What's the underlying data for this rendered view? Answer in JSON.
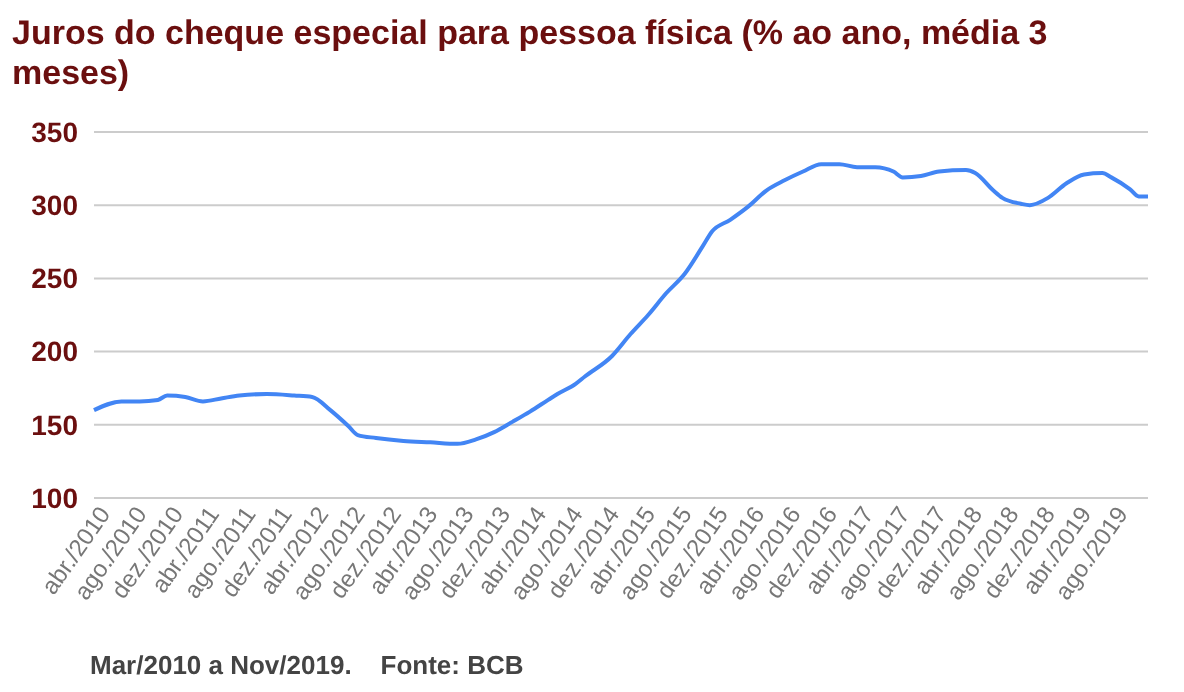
{
  "chart_data": {
    "type": "line",
    "title": "Juros do cheque especial para pessoa física (% ao ano, média 3 meses)",
    "x": [
      "2010-03",
      "2010-06",
      "2010-08",
      "2010-10",
      "2010-11",
      "2011-01",
      "2011-03",
      "2011-05",
      "2011-07",
      "2011-10",
      "2012-01",
      "2012-03",
      "2012-05",
      "2012-07",
      "2012-08",
      "2012-10",
      "2013-01",
      "2013-04",
      "2013-07",
      "2013-09",
      "2013-11",
      "2014-01",
      "2014-03",
      "2014-05",
      "2014-06",
      "2014-08",
      "2014-09",
      "2014-12",
      "2015-02",
      "2015-04",
      "2015-06",
      "2015-08",
      "2015-10",
      "2015-11",
      "2016-01",
      "2016-03",
      "2016-05",
      "2016-07",
      "2016-09",
      "2016-11",
      "2017-01",
      "2017-03",
      "2017-05",
      "2017-07",
      "2017-08",
      "2017-10",
      "2017-12",
      "2018-03",
      "2018-04",
      "2018-06",
      "2018-07",
      "2018-09",
      "2018-10",
      "2018-12",
      "2019-02",
      "2019-04",
      "2019-06",
      "2019-07",
      "2019-09",
      "2019-10",
      "2019-11"
    ],
    "series": [
      {
        "color": "#4285f4",
        "values": [
          160,
          166,
          166,
          167,
          170,
          169,
          166,
          168,
          170,
          171,
          170,
          169,
          160,
          149,
          143,
          141,
          139,
          138,
          137,
          140,
          145,
          152,
          159,
          167,
          171,
          178,
          183,
          197,
          212,
          225,
          240,
          253,
          272,
          282,
          290,
          299,
          310,
          317,
          323,
          328,
          328,
          326,
          326,
          323,
          319,
          320,
          323,
          324,
          322,
          310,
          305,
          301,
          300,
          305,
          315,
          321,
          322,
          319,
          311,
          306,
          306
        ]
      }
    ],
    "xlim": [
      "2010-03",
      "2019-11"
    ],
    "xticks": [
      {
        "value": "2010-04",
        "label": "abr./2010"
      },
      {
        "value": "2010-08",
        "label": "ago./2010"
      },
      {
        "value": "2010-12",
        "label": "dez./2010"
      },
      {
        "value": "2011-04",
        "label": "abr./2011"
      },
      {
        "value": "2011-08",
        "label": "ago./2011"
      },
      {
        "value": "2011-12",
        "label": "dez./2011"
      },
      {
        "value": "2012-04",
        "label": "abr./2012"
      },
      {
        "value": "2012-08",
        "label": "ago./2012"
      },
      {
        "value": "2012-12",
        "label": "dez./2012"
      },
      {
        "value": "2013-04",
        "label": "abr./2013"
      },
      {
        "value": "2013-08",
        "label": "ago./2013"
      },
      {
        "value": "2013-12",
        "label": "dez./2013"
      },
      {
        "value": "2014-04",
        "label": "abr./2014"
      },
      {
        "value": "2014-08",
        "label": "ago./2014"
      },
      {
        "value": "2014-12",
        "label": "dez./2014"
      },
      {
        "value": "2015-04",
        "label": "abr./2015"
      },
      {
        "value": "2015-08",
        "label": "ago./2015"
      },
      {
        "value": "2015-12",
        "label": "dez./2015"
      },
      {
        "value": "2016-04",
        "label": "abr./2016"
      },
      {
        "value": "2016-08",
        "label": "ago./2016"
      },
      {
        "value": "2016-12",
        "label": "dez./2016"
      },
      {
        "value": "2017-04",
        "label": "abr./2017"
      },
      {
        "value": "2017-08",
        "label": "ago./2017"
      },
      {
        "value": "2017-12",
        "label": "dez./2017"
      },
      {
        "value": "2018-04",
        "label": "abr./2018"
      },
      {
        "value": "2018-08",
        "label": "ago./2018"
      },
      {
        "value": "2018-12",
        "label": "dez./2018"
      },
      {
        "value": "2019-04",
        "label": "abr./2019"
      },
      {
        "value": "2019-08",
        "label": "ago./2019"
      }
    ],
    "ylim": [
      100,
      350
    ],
    "yticks": [
      100,
      150,
      200,
      250,
      300,
      350
    ],
    "grid": "y",
    "marker": "none",
    "line_style": "solid",
    "annotations": [
      "Mar/2010 a Nov/2019.    Fonte: BCB"
    ]
  }
}
